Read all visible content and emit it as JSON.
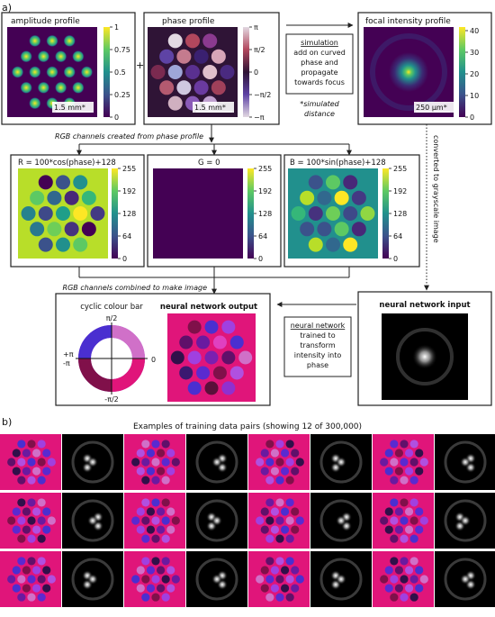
{
  "panel_a": {
    "label": "a)",
    "amplitude": {
      "title": "amplitude profile",
      "ticks": [
        "1",
        "0.75",
        "0.5",
        "0.25",
        "0"
      ],
      "scalebar": "1.5 mm*"
    },
    "phase": {
      "title": "phase profile",
      "ticks": [
        "π",
        "π/2",
        "0",
        "−π/2",
        "−π"
      ],
      "scalebar": "1.5 mm*"
    },
    "plus": "+",
    "simulation": {
      "title": "simulation",
      "lines": [
        "add on curved",
        "phase and",
        "propagate",
        "towards focus"
      ]
    },
    "simulated_note": [
      "*simulated",
      "distance"
    ],
    "focal": {
      "title": "focal intensity profile",
      "ticks": [
        "40",
        "30",
        "20",
        "10",
        "0"
      ],
      "scalebar": "250 µm*"
    },
    "rgb_note": "RGB channels created from phase profile",
    "rgb_R": {
      "title": "R = 100*cos(phase)+128",
      "ticks": [
        "255",
        "192",
        "128",
        "64",
        "0"
      ]
    },
    "rgb_G": {
      "title": "G = 0",
      "ticks": [
        "255",
        "192",
        "128",
        "64",
        "0"
      ]
    },
    "rgb_B": {
      "title": "B = 100*sin(phase)+128",
      "ticks": [
        "255",
        "192",
        "128",
        "64",
        "0"
      ]
    },
    "converted_note": "converted to grayscale image",
    "combined_note": "RGB channels combined to make image",
    "cyclic": {
      "title": "cyclic colour bar",
      "top": "π/2",
      "bottom": "-π/2",
      "left_top": "+π",
      "left_bottom": "-π",
      "right": "0"
    },
    "nn_output": "neural network output",
    "nn_box": {
      "title": "neural network",
      "lines": [
        "trained to",
        "transform",
        "intensity into",
        "phase"
      ]
    },
    "nn_input": "neural network input"
  },
  "panel_b": {
    "label": "b)",
    "caption": "Examples of training data pairs (showing 12 of 300,000)"
  },
  "colors": {
    "viridis_dark": "#440154",
    "viridis_yellow": "#fde725",
    "teal": "#21908d",
    "magenta": "#e0157a",
    "purple": "#4a2fd0"
  }
}
